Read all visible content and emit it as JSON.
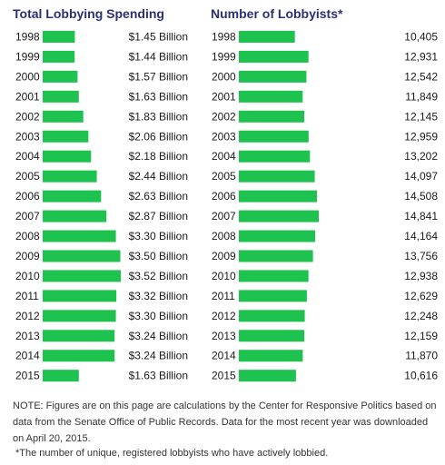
{
  "colors": {
    "bar": "#1dc24f",
    "title": "#2b2f74",
    "text": "#1a1a1a"
  },
  "chart_data": [
    {
      "type": "bar",
      "orientation": "horizontal",
      "title": "Total Lobbying Spending",
      "categories": [
        "1998",
        "1999",
        "2000",
        "2001",
        "2002",
        "2003",
        "2004",
        "2005",
        "2006",
        "2007",
        "2008",
        "2009",
        "2010",
        "2011",
        "2012",
        "2013",
        "2014",
        "2015"
      ],
      "values": [
        1.45,
        1.44,
        1.57,
        1.63,
        1.83,
        2.06,
        2.18,
        2.44,
        2.63,
        2.87,
        3.3,
        3.5,
        3.52,
        3.32,
        3.3,
        3.24,
        3.24,
        1.63
      ],
      "value_labels": [
        "$1.45 Billion",
        "$1.44 Billion",
        "$1.57 Billion",
        "$1.63 Billion",
        "$1.83 Billion",
        "$2.06 Billion",
        "$2.18 Billion",
        "$2.44 Billion",
        "$2.63 Billion",
        "$2.87 Billion",
        "$3.30 Billion",
        "$3.50 Billion",
        "$3.52 Billion",
        "$3.32 Billion",
        "$3.30 Billion",
        "$3.24 Billion",
        "$3.24 Billion",
        "$1.63 Billion"
      ],
      "xlim": [
        0,
        3.52
      ],
      "grid": false
    },
    {
      "type": "bar",
      "orientation": "horizontal",
      "title": "Number of Lobbyists*",
      "categories": [
        "1998",
        "1999",
        "2000",
        "2001",
        "2002",
        "2003",
        "2004",
        "2005",
        "2006",
        "2007",
        "2008",
        "2009",
        "2010",
        "2011",
        "2012",
        "2013",
        "2014",
        "2015"
      ],
      "values": [
        10405,
        12931,
        12542,
        11849,
        12145,
        12959,
        13202,
        14097,
        14508,
        14841,
        14164,
        13756,
        12938,
        12629,
        12248,
        12159,
        11870,
        10616
      ],
      "value_labels": [
        "10,405",
        "12,931",
        "12,542",
        "11,849",
        "12,145",
        "12,959",
        "13,202",
        "14,097",
        "14,508",
        "14,841",
        "14,164",
        "13,756",
        "12,938",
        "12,629",
        "12,248",
        "12,159",
        "11,870",
        "10,616"
      ],
      "xlim": [
        0,
        14841
      ],
      "grid": false
    }
  ],
  "notes": {
    "text": "NOTE: Figures are on this page are calculations by the Center for Responsive Politics based on data from the Senate Office of Public Records. Data for the most recent year was downloaded on April 20, 2015.",
    "footnote": "*The number of unique, registered lobbyists who have actively lobbied."
  }
}
